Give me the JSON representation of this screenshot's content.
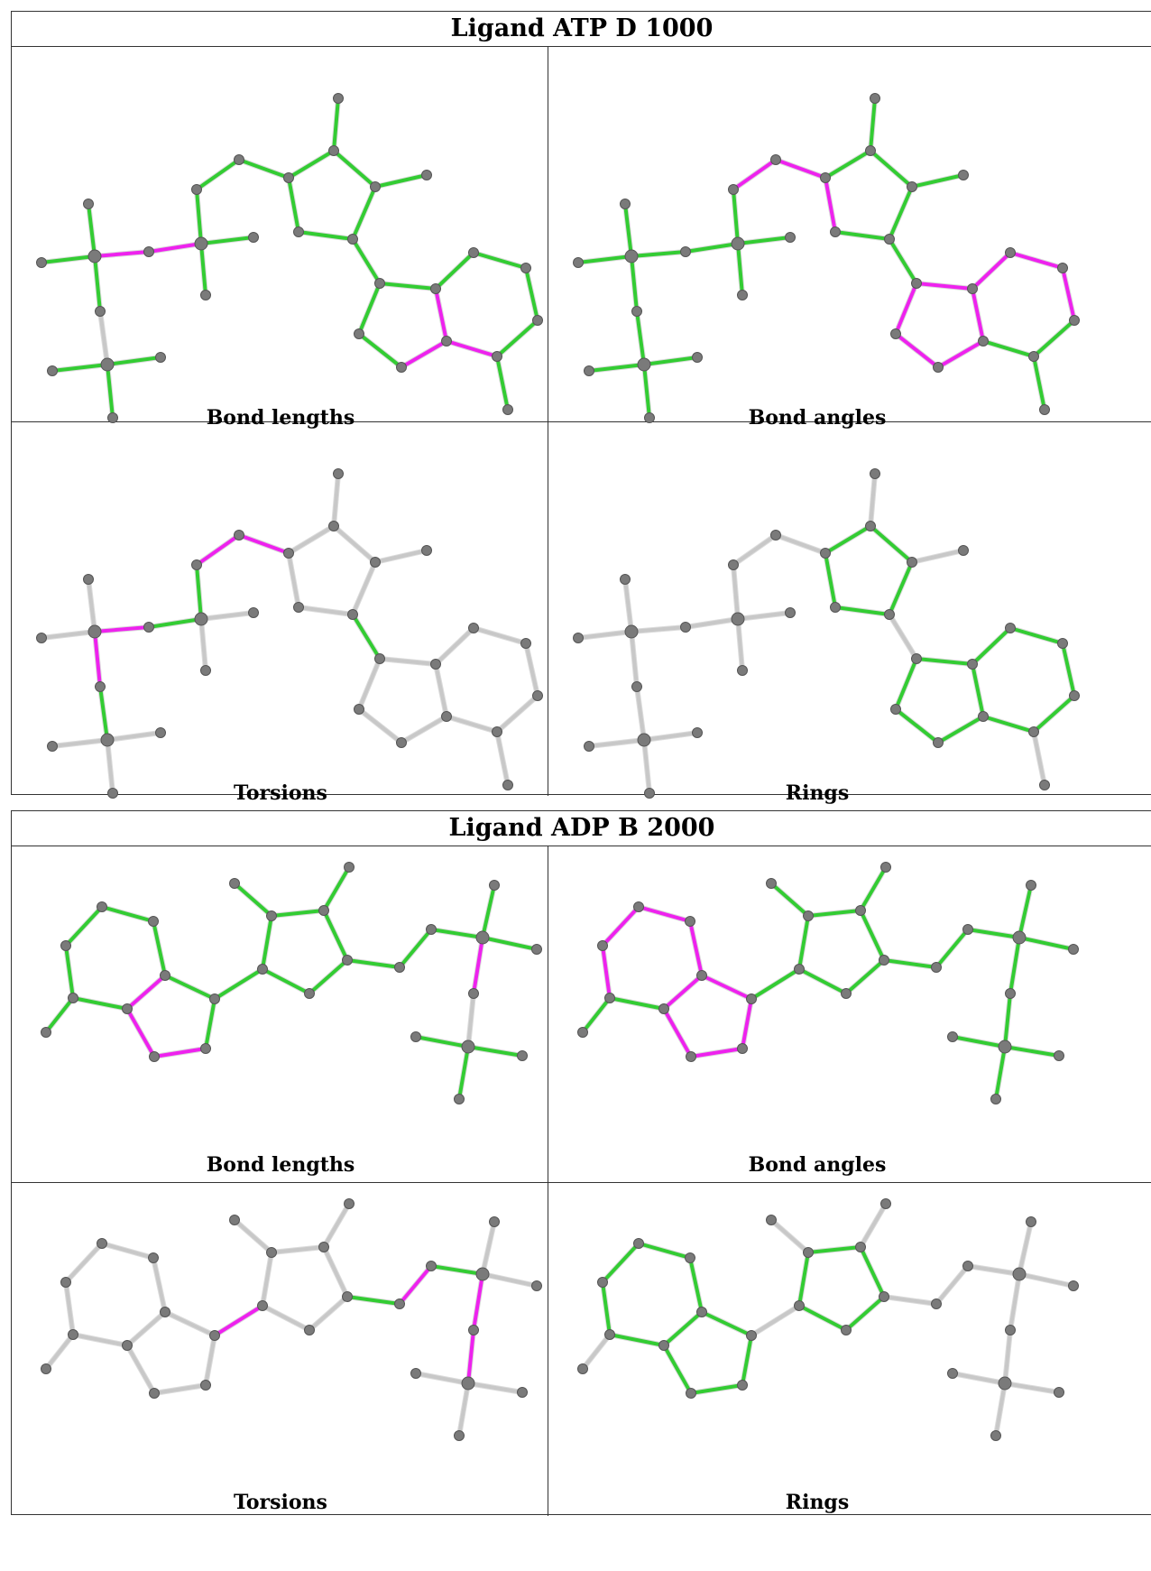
{
  "ligands": [
    {
      "title": "Ligand ATP D 1000",
      "panels": [
        {
          "caption": "Bond lengths"
        },
        {
          "caption": "Bond angles"
        },
        {
          "caption": "Torsions"
        },
        {
          "caption": "Rings"
        }
      ]
    },
    {
      "title": "Ligand ADP B 2000",
      "panels": [
        {
          "caption": "Bond lengths"
        },
        {
          "caption": "Bond angles"
        },
        {
          "caption": "Torsions"
        },
        {
          "caption": "Rings"
        }
      ]
    }
  ],
  "colors": {
    "good": "#33cc33",
    "outlier": "#ee22ee",
    "none": "#c8c8c8",
    "atom": "#7a7a7a"
  }
}
